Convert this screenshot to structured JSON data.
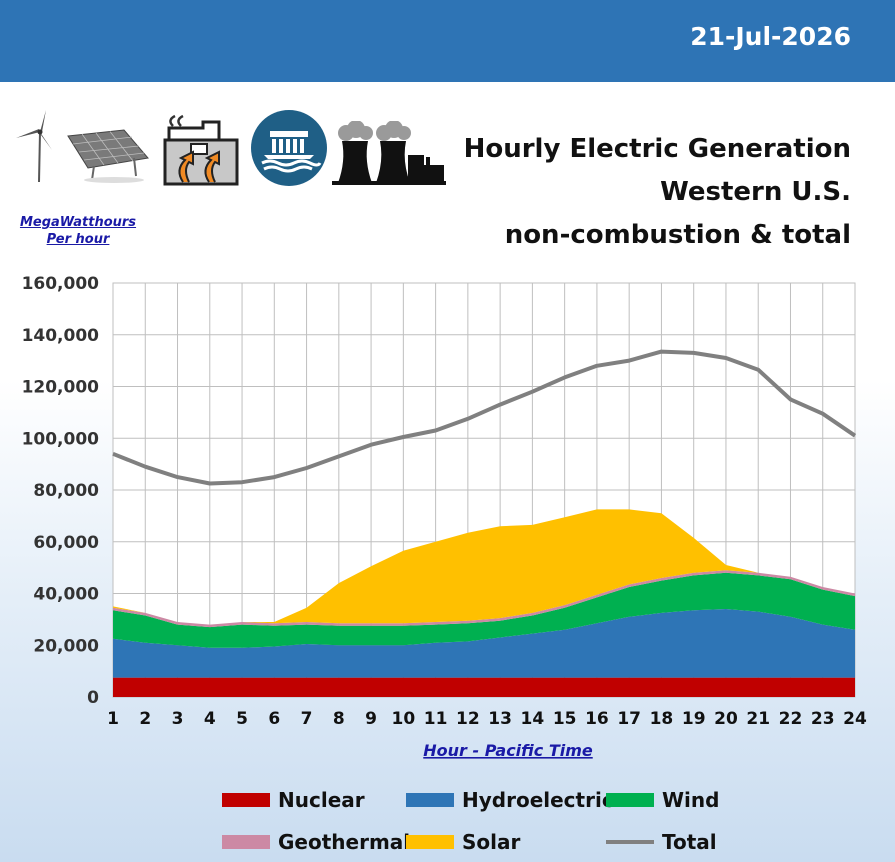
{
  "header": {
    "date": "21-Jul-2026"
  },
  "titles": {
    "line1": "Hourly Electric Generation",
    "line2": "Western U.S.",
    "line3": "non-combustion & total"
  },
  "y_axis_label": {
    "line1": "MegaWatthours",
    "line2": "Per hour"
  },
  "x_axis_label": "Hour - Pacific Time",
  "icons": [
    "wind-turbine-icon",
    "solar-panel-icon",
    "geothermal-plant-icon",
    "hydro-dam-icon",
    "nuclear-plant-icon"
  ],
  "chart_data": {
    "type": "area",
    "stacked": true,
    "x": [
      1,
      2,
      3,
      4,
      5,
      6,
      7,
      8,
      9,
      10,
      11,
      12,
      13,
      14,
      15,
      16,
      17,
      18,
      19,
      20,
      21,
      22,
      23,
      24
    ],
    "ylim": [
      0,
      160000
    ],
    "yticks": [
      0,
      20000,
      40000,
      60000,
      80000,
      100000,
      120000,
      140000,
      160000
    ],
    "ytick_labels": [
      "0",
      "20,000",
      "40,000",
      "60,000",
      "80,000",
      "100,000",
      "120,000",
      "140,000",
      "160,000"
    ],
    "grid": true,
    "legend_position": "bottom",
    "series": [
      {
        "name": "Nuclear",
        "color": "#c00000",
        "values": [
          7500,
          7500,
          7500,
          7500,
          7500,
          7500,
          7500,
          7500,
          7500,
          7500,
          7500,
          7500,
          7500,
          7500,
          7500,
          7500,
          7500,
          7500,
          7500,
          7500,
          7500,
          7500,
          7500,
          7500
        ]
      },
      {
        "name": "Hydroelectric",
        "color": "#2e75b6",
        "values": [
          15000,
          13500,
          12500,
          11500,
          11500,
          12000,
          13000,
          12500,
          12500,
          12500,
          13500,
          14000,
          15500,
          17000,
          18500,
          21000,
          23500,
          25000,
          26000,
          26500,
          25500,
          23500,
          20500,
          18500
        ]
      },
      {
        "name": "Wind",
        "color": "#00b050",
        "values": [
          11000,
          10500,
          8000,
          8000,
          9000,
          8000,
          7500,
          7500,
          7500,
          7500,
          7000,
          7000,
          6500,
          7000,
          8500,
          10000,
          11500,
          12500,
          13500,
          14000,
          14000,
          14500,
          13500,
          13000
        ]
      },
      {
        "name": "Geothermal",
        "color": "#cc89a4",
        "values": [
          1000,
          1000,
          1000,
          1000,
          1000,
          1000,
          1000,
          1000,
          1000,
          1000,
          1000,
          1000,
          1000,
          1000,
          1000,
          1000,
          1000,
          1000,
          1000,
          1000,
          1000,
          1000,
          1000,
          1000
        ]
      },
      {
        "name": "Solar",
        "color": "#ffc000",
        "values": [
          500,
          0,
          0,
          0,
          0,
          500,
          5500,
          15500,
          22000,
          28000,
          31000,
          34000,
          35500,
          34000,
          34000,
          33000,
          29000,
          25000,
          13500,
          2000,
          0,
          0,
          0,
          0
        ]
      },
      {
        "name": "Total",
        "color": "#808080",
        "kind": "line",
        "values": [
          94000,
          89000,
          85000,
          82500,
          83000,
          85000,
          88500,
          93000,
          97500,
          100500,
          103000,
          107500,
          113000,
          118000,
          123500,
          128000,
          130000,
          133500,
          133000,
          131000,
          126500,
          115000,
          109500,
          101000
        ]
      }
    ]
  },
  "legend": {
    "nuclear": "Nuclear",
    "hydro": "Hydroelectric",
    "wind": "Wind",
    "geothermal": "Geothermal",
    "solar": "Solar",
    "total": "Total"
  }
}
